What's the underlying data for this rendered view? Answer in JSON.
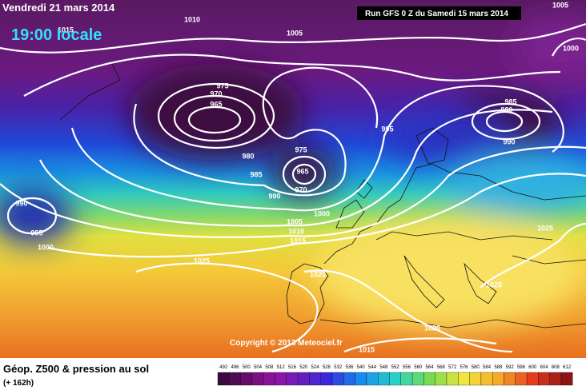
{
  "header": {
    "date": "Vendredi 21 mars 2014",
    "time": "19:00 locale",
    "run": "Run GFS 0 Z du Samedi 15 mars 2014"
  },
  "isobar_labels": [
    "1010",
    "1005",
    "1005",
    "1000",
    "1015",
    "975",
    "970",
    "965",
    "995",
    "985",
    "980",
    "990",
    "975",
    "980",
    "985",
    "965",
    "970",
    "990",
    "1000",
    "1005",
    "1010",
    "1015",
    "990",
    "995",
    "1000",
    "1025",
    "1020",
    "1025",
    "1025",
    "1020",
    "1015"
  ],
  "copyright": "Copyright © 2013 Meteociel.fr",
  "legend": {
    "title": "Géop. Z500 & pression au sol",
    "lead_time": "(+ 162h)",
    "scale": [
      492,
      496,
      500,
      504,
      508,
      512,
      516,
      520,
      524,
      528,
      532,
      536,
      540,
      544,
      548,
      552,
      556,
      560,
      564,
      568,
      572,
      576,
      580,
      584,
      588,
      592,
      596,
      600,
      604,
      608,
      612
    ]
  }
}
